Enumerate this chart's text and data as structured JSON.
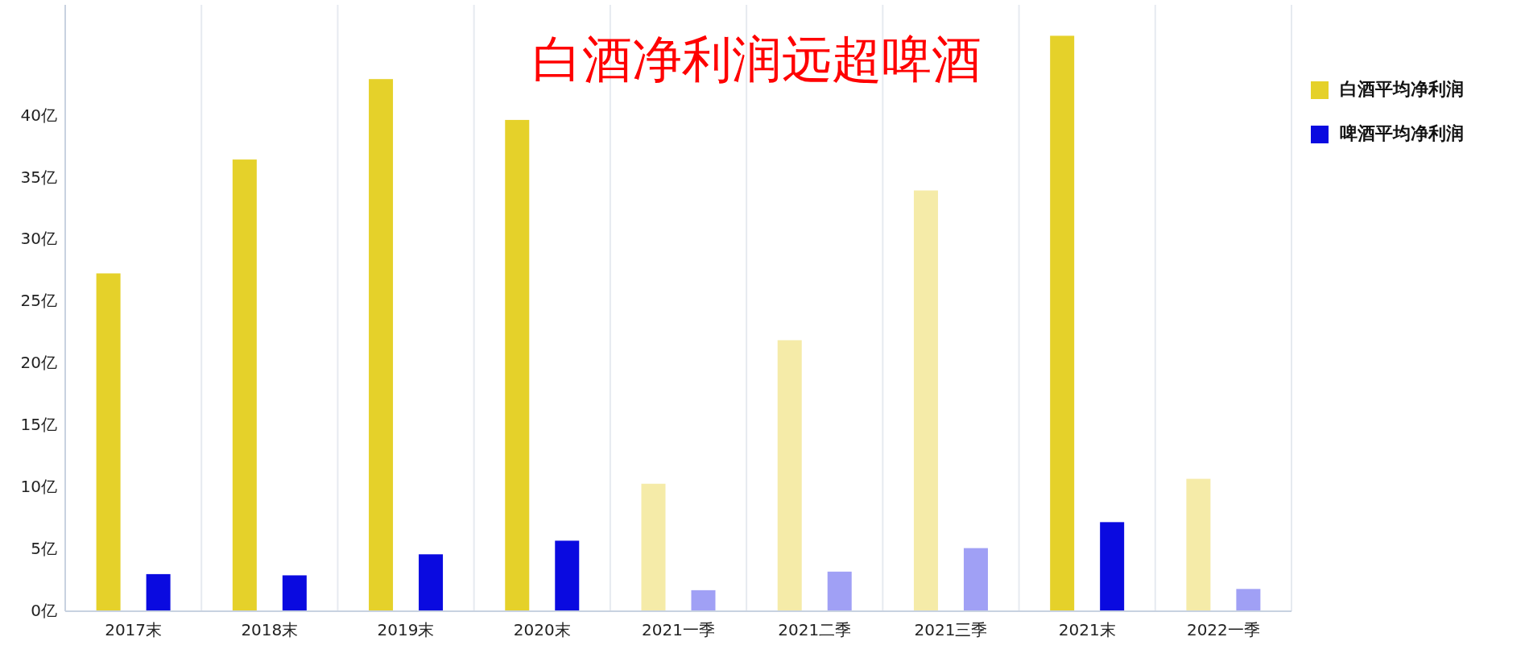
{
  "chart_data": {
    "type": "bar",
    "title": "白酒净利润远超啤酒",
    "categories": [
      "2017末",
      "2018末",
      "2019末",
      "2020末",
      "2021一季",
      "2021二季",
      "2021三季",
      "2021末",
      "2022一季"
    ],
    "series": [
      {
        "name": "白酒平均净利润",
        "color": "#e5d12a",
        "colors": [
          "#e5d12a",
          "#e5d12a",
          "#e5d12a",
          "#e5d12a",
          "#f5eba8",
          "#f5eba8",
          "#f5eba8",
          "#e5d12a",
          "#f5eba8"
        ],
        "values": [
          27.3,
          36.5,
          43.0,
          39.7,
          10.3,
          21.9,
          34.0,
          46.5,
          10.7
        ]
      },
      {
        "name": "啤酒平均净利润",
        "color": "#0a0ae0",
        "colors": [
          "#0a0ae0",
          "#0a0ae0",
          "#0a0ae0",
          "#0a0ae0",
          "#a0a0f5",
          "#a0a0f5",
          "#a0a0f5",
          "#0a0ae0",
          "#a0a0f5"
        ],
        "values": [
          3.0,
          2.9,
          4.6,
          5.7,
          1.7,
          3.2,
          5.1,
          7.2,
          1.8
        ]
      }
    ],
    "ylim": [
      0,
      49
    ],
    "yticks": [
      {
        "value": 0,
        "label": "0亿"
      },
      {
        "value": 5,
        "label": "5亿"
      },
      {
        "value": 10,
        "label": "10亿"
      },
      {
        "value": 15,
        "label": "15亿"
      },
      {
        "value": 20,
        "label": "20亿"
      },
      {
        "value": 25,
        "label": "25亿"
      },
      {
        "value": 30,
        "label": "30亿"
      },
      {
        "value": 35,
        "label": "35亿"
      },
      {
        "value": 40,
        "label": "40亿"
      }
    ],
    "grid": "x",
    "legend": "right"
  }
}
